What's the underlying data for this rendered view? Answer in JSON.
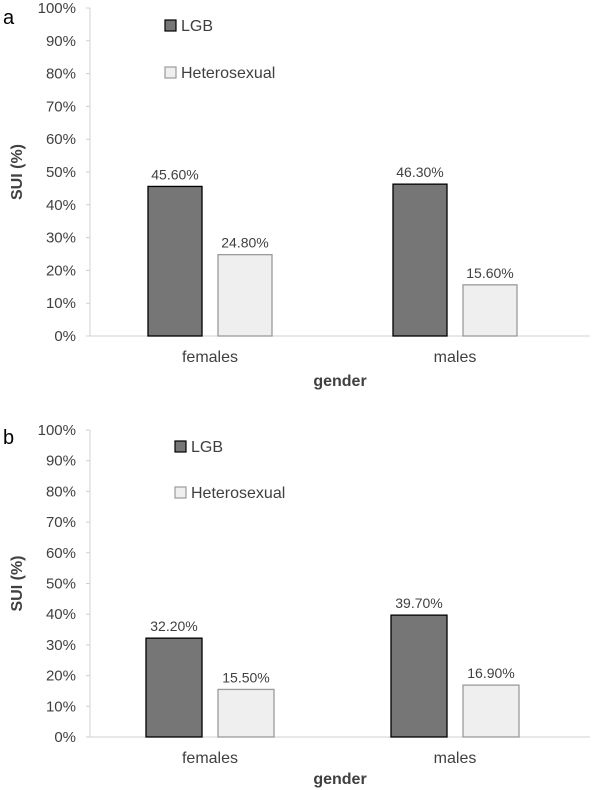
{
  "colors": {
    "lgb": "#767676",
    "hetero": "#efefef",
    "bar_stroke": "#000000",
    "hetero_stroke": "#9a9a9a",
    "axis": "#d0d0d0"
  },
  "chart_data": [
    {
      "panel": "a",
      "type": "bar",
      "categories": [
        "females",
        "males"
      ],
      "series": [
        {
          "name": "LGB",
          "values": [
            45.6,
            46.3
          ],
          "labels": [
            "45.60%",
            "46.30%"
          ]
        },
        {
          "name": "Heterosexual",
          "values": [
            24.8,
            15.6
          ],
          "labels": [
            "24.80%",
            "15.60%"
          ]
        }
      ],
      "xlabel": "gender",
      "ylabel": "SUI (%)",
      "ylim": [
        0,
        100
      ],
      "yticks": [
        "0%",
        "10%",
        "20%",
        "30%",
        "40%",
        "50%",
        "60%",
        "70%",
        "80%",
        "90%",
        "100%"
      ],
      "grid": false,
      "legend_position": "top-left"
    },
    {
      "panel": "b",
      "type": "bar",
      "categories": [
        "females",
        "males"
      ],
      "series": [
        {
          "name": "LGB",
          "values": [
            32.2,
            39.7
          ],
          "labels": [
            "32.20%",
            "39.70%"
          ]
        },
        {
          "name": "Heterosexual",
          "values": [
            15.5,
            16.9
          ],
          "labels": [
            "15.50%",
            "16.90%"
          ]
        }
      ],
      "xlabel": "gender",
      "ylabel": "SUI (%)",
      "ylim": [
        0,
        100
      ],
      "yticks": [
        "0%",
        "10%",
        "20%",
        "30%",
        "40%",
        "50%",
        "60%",
        "70%",
        "80%",
        "90%",
        "100%"
      ],
      "grid": false,
      "legend_position": "top-left"
    }
  ]
}
